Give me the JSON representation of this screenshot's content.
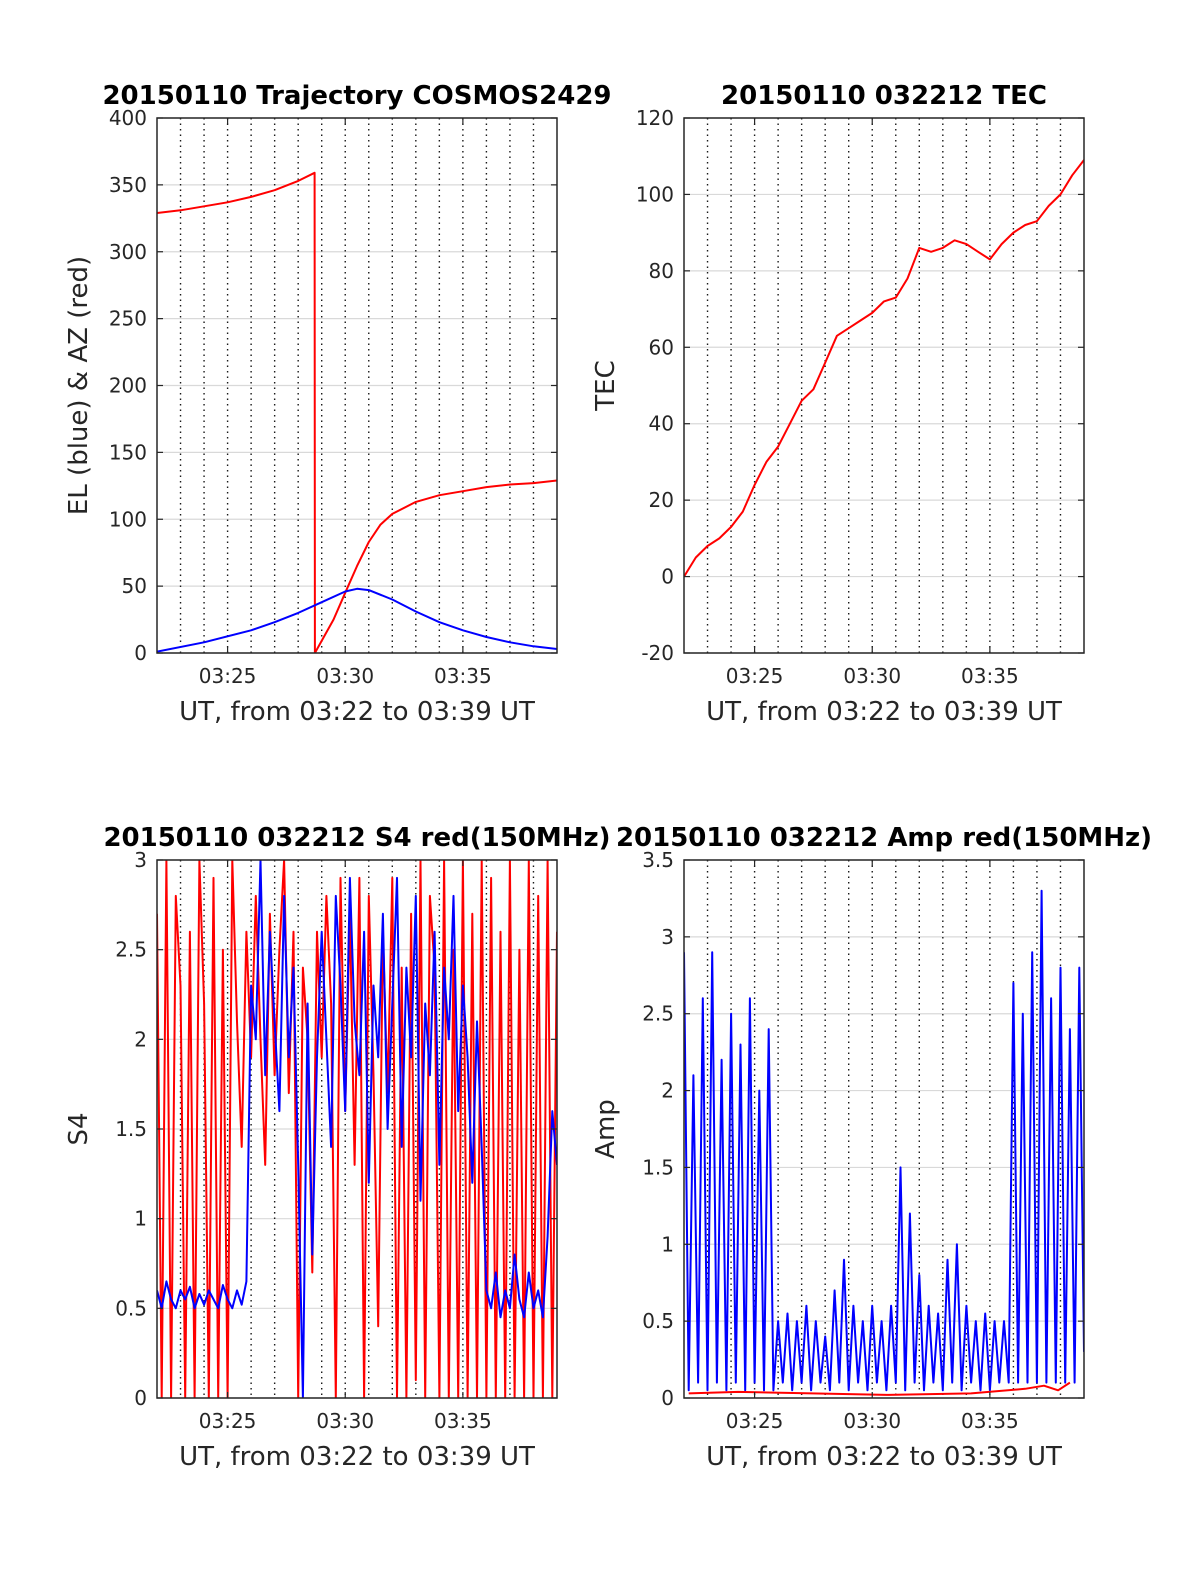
{
  "chart_data": [
    {
      "id": "traj",
      "type": "line",
      "title": "20150110 Trajectory COSMOS2429",
      "xlabel": "UT, from 03:22 to 03:39 UT",
      "ylabel": "EL (blue) & AZ (red)",
      "x_unit": "minutes after 03:22",
      "xlim": [
        0,
        17
      ],
      "ylim": [
        0,
        400
      ],
      "x_ticks": [
        3,
        8,
        13
      ],
      "x_tick_labels": [
        "03:25",
        "03:30",
        "03:35"
      ],
      "y_ticks": [
        0,
        50,
        100,
        150,
        200,
        250,
        300,
        350,
        400
      ],
      "y_tick_labels": [
        "0",
        "50",
        "100",
        "150",
        "200",
        "250",
        "300",
        "350",
        "400"
      ],
      "grid": true,
      "series": [
        {
          "color": "#ff0000",
          "x": [
            0,
            1,
            2,
            3,
            4,
            5,
            6,
            6.7,
            6.7,
            6.71,
            7.5,
            8,
            8.5,
            9,
            9.5,
            10,
            11,
            12,
            13,
            14,
            15,
            16,
            17
          ],
          "y": [
            329,
            331,
            334,
            337,
            341,
            346,
            353,
            359,
            359,
            0,
            25,
            45,
            65,
            83,
            96,
            104,
            113,
            118,
            121,
            124,
            126,
            127,
            129
          ]
        },
        {
          "color": "#0000ff",
          "x": [
            0,
            2,
            4,
            5,
            6,
            7,
            8,
            8.5,
            9,
            10,
            11,
            12,
            13,
            14,
            15,
            16,
            17
          ],
          "y": [
            1,
            8,
            17,
            23,
            30,
            38,
            46,
            48,
            47,
            40,
            31,
            23,
            17,
            12,
            8,
            5,
            3
          ]
        }
      ]
    },
    {
      "id": "tec",
      "type": "line",
      "title": "20150110 032212 TEC",
      "xlabel": "UT, from 03:22 to 03:39 UT",
      "ylabel": "TEC",
      "x_unit": "minutes after 03:22",
      "xlim": [
        0,
        17
      ],
      "ylim": [
        -20,
        120
      ],
      "x_ticks": [
        3,
        8,
        13
      ],
      "x_tick_labels": [
        "03:25",
        "03:30",
        "03:35"
      ],
      "y_ticks": [
        -20,
        0,
        20,
        40,
        60,
        80,
        100,
        120
      ],
      "y_tick_labels": [
        "-20",
        "0",
        "20",
        "40",
        "60",
        "80",
        "100",
        "120"
      ],
      "grid": true,
      "series": [
        {
          "color": "#ff0000",
          "x": [
            0,
            0.5,
            1,
            1.5,
            2,
            2.5,
            3,
            3.5,
            4,
            4.5,
            5,
            5.5,
            6,
            6.5,
            7,
            7.5,
            8,
            8.5,
            9,
            9.5,
            10,
            10.5,
            11,
            11.5,
            12,
            12.5,
            13,
            13.5,
            14,
            14.5,
            15,
            15.5,
            16,
            16.5,
            17
          ],
          "y": [
            0,
            5,
            8,
            10,
            13,
            17,
            24,
            30,
            34,
            40,
            46,
            49,
            56,
            63,
            65,
            67,
            69,
            72,
            73,
            78,
            86,
            85,
            86,
            88,
            87,
            85,
            83,
            87,
            90,
            92,
            93,
            97,
            100,
            105,
            109
          ]
        }
      ]
    },
    {
      "id": "s4",
      "type": "line",
      "title": "20150110 032212 S4 red(150MHz)",
      "xlabel": "UT, from 03:22 to 03:39 UT",
      "ylabel": "S4",
      "x_unit": "minutes after 03:22",
      "xlim": [
        0,
        17
      ],
      "ylim": [
        0,
        3
      ],
      "x_ticks": [
        3,
        8,
        13
      ],
      "x_tick_labels": [
        "03:25",
        "03:30",
        "03:35"
      ],
      "y_ticks": [
        0,
        0.5,
        1,
        1.5,
        2,
        2.5,
        3
      ],
      "y_tick_labels": [
        "0",
        "0.5",
        "1",
        "1.5",
        "2",
        "2.5",
        "3"
      ],
      "grid": true,
      "series": [
        {
          "color": "#ff0000",
          "x": [
            0.0,
            0.2,
            0.4,
            0.6,
            0.8,
            1.0,
            1.2,
            1.4,
            1.6,
            1.8,
            2.0,
            2.2,
            2.4,
            2.6,
            2.8,
            3.0,
            3.2,
            3.4,
            3.6,
            3.8,
            4.0,
            4.2,
            4.4,
            4.6,
            4.8,
            5.0,
            5.2,
            5.4,
            5.6,
            5.8,
            6.0,
            6.2,
            6.4,
            6.6,
            6.8,
            7.0,
            7.2,
            7.4,
            7.6,
            7.8,
            8.0,
            8.2,
            8.4,
            8.6,
            8.8,
            9.0,
            9.2,
            9.4,
            9.6,
            9.8,
            10.0,
            10.2,
            10.4,
            10.6,
            10.8,
            11.0,
            11.2,
            11.4,
            11.6,
            11.8,
            12.0,
            12.2,
            12.4,
            12.6,
            12.8,
            13.0,
            13.2,
            13.4,
            13.6,
            13.8,
            14.0,
            14.2,
            14.4,
            14.6,
            14.8,
            15.0,
            15.2,
            15.4,
            15.6,
            15.8,
            16.0,
            16.2,
            16.4,
            16.6,
            16.8,
            17.0
          ],
          "y": [
            2.7,
            0.0,
            3.0,
            0.0,
            2.8,
            2.3,
            0.0,
            2.6,
            0.0,
            3.0,
            2.2,
            0.0,
            2.9,
            0.0,
            2.5,
            0.0,
            3.0,
            2.1,
            1.4,
            2.6,
            1.9,
            2.8,
            2.0,
            1.3,
            2.7,
            1.8,
            2.5,
            3.0,
            1.7,
            2.6,
            0.0,
            2.4,
            2.0,
            0.7,
            2.6,
            1.9,
            2.8,
            2.2,
            0.0,
            2.9,
            1.6,
            2.7,
            1.3,
            2.9,
            0.0,
            2.8,
            1.8,
            0.4,
            2.6,
            1.7,
            2.9,
            0.0,
            2.4,
            0.0,
            2.7,
            0.1,
            3.0,
            0.0,
            2.8,
            2.4,
            0.0,
            3.0,
            0.0,
            2.5,
            0.0,
            3.0,
            0.0,
            2.7,
            0.0,
            3.0,
            0.0,
            2.9,
            0.0,
            2.6,
            0.0,
            3.0,
            0.0,
            2.5,
            0.0,
            3.0,
            0.0,
            2.8,
            0.0,
            3.0,
            0.0,
            2.6
          ]
        },
        {
          "color": "#0000ff",
          "x": [
            0.0,
            0.2,
            0.4,
            0.6,
            0.8,
            1.0,
            1.2,
            1.4,
            1.6,
            1.8,
            2.0,
            2.2,
            2.4,
            2.6,
            2.8,
            3.0,
            3.2,
            3.4,
            3.6,
            3.8,
            4.0,
            4.2,
            4.4,
            4.6,
            4.8,
            5.0,
            5.2,
            5.4,
            5.6,
            5.8,
            6.0,
            6.2,
            6.4,
            6.6,
            6.8,
            7.0,
            7.2,
            7.4,
            7.6,
            7.8,
            8.0,
            8.2,
            8.4,
            8.6,
            8.8,
            9.0,
            9.2,
            9.4,
            9.6,
            9.8,
            10.0,
            10.2,
            10.4,
            10.6,
            10.8,
            11.0,
            11.2,
            11.4,
            11.6,
            11.8,
            12.0,
            12.2,
            12.4,
            12.6,
            12.8,
            13.0,
            13.2,
            13.4,
            13.6,
            13.8,
            14.0,
            14.2,
            14.4,
            14.6,
            14.8,
            15.0,
            15.2,
            15.4,
            15.6,
            15.8,
            16.0,
            16.2,
            16.4,
            16.6,
            16.8,
            17.0
          ],
          "y": [
            0.6,
            0.5,
            0.65,
            0.55,
            0.5,
            0.6,
            0.55,
            0.62,
            0.5,
            0.58,
            0.52,
            0.6,
            0.55,
            0.5,
            0.63,
            0.55,
            0.5,
            0.6,
            0.52,
            0.65,
            2.3,
            2.0,
            3.0,
            1.8,
            2.6,
            2.1,
            1.6,
            2.8,
            1.9,
            2.4,
            1.3,
            0.0,
            2.2,
            0.8,
            1.9,
            2.6,
            2.0,
            1.4,
            2.8,
            2.3,
            1.6,
            2.9,
            2.1,
            1.8,
            2.6,
            1.2,
            2.3,
            1.9,
            2.7,
            1.5,
            2.2,
            2.9,
            1.4,
            2.4,
            1.9,
            2.8,
            1.1,
            2.2,
            1.8,
            2.6,
            1.3,
            2.4,
            2.0,
            2.8,
            1.6,
            2.3,
            1.9,
            1.2,
            2.1,
            1.4,
            0.6,
            0.5,
            0.7,
            0.45,
            0.6,
            0.5,
            0.8,
            0.55,
            0.45,
            0.7,
            0.5,
            0.6,
            0.45,
            0.9,
            1.6,
            1.3
          ]
        }
      ]
    },
    {
      "id": "amp",
      "type": "line",
      "title": "20150110 032212 Amp red(150MHz)",
      "xlabel": "UT, from 03:22 to 03:39 UT",
      "ylabel": "Amp",
      "x_unit": "minutes after 03:22",
      "xlim": [
        0,
        17
      ],
      "ylim": [
        0,
        3.5
      ],
      "x_ticks": [
        3,
        8,
        13
      ],
      "x_tick_labels": [
        "03:25",
        "03:30",
        "03:35"
      ],
      "y_ticks": [
        0,
        0.5,
        1,
        1.5,
        2,
        2.5,
        3,
        3.5
      ],
      "y_tick_labels": [
        "0",
        "0.5",
        "1",
        "1.5",
        "2",
        "2.5",
        "3",
        "3.5"
      ],
      "grid": true,
      "series": [
        {
          "color": "#0000ff",
          "x": [
            0.0,
            0.2,
            0.4,
            0.6,
            0.8,
            1.0,
            1.2,
            1.4,
            1.6,
            1.8,
            2.0,
            2.2,
            2.4,
            2.6,
            2.8,
            3.0,
            3.2,
            3.4,
            3.6,
            3.8,
            4.0,
            4.2,
            4.4,
            4.6,
            4.8,
            5.0,
            5.2,
            5.4,
            5.6,
            5.8,
            6.0,
            6.2,
            6.4,
            6.6,
            6.8,
            7.0,
            7.2,
            7.4,
            7.6,
            7.8,
            8.0,
            8.2,
            8.4,
            8.6,
            8.8,
            9.0,
            9.2,
            9.4,
            9.6,
            9.8,
            10.0,
            10.2,
            10.4,
            10.6,
            10.8,
            11.0,
            11.2,
            11.4,
            11.6,
            11.8,
            12.0,
            12.2,
            12.4,
            12.6,
            12.8,
            13.0,
            13.2,
            13.4,
            13.6,
            13.8,
            14.0,
            14.2,
            14.4,
            14.6,
            14.8,
            15.0,
            15.2,
            15.4,
            15.6,
            15.8,
            16.0,
            16.2,
            16.4,
            16.6,
            16.8,
            17.0
          ],
          "y": [
            2.9,
            0.05,
            2.1,
            0.1,
            2.6,
            0.05,
            2.9,
            0.1,
            2.2,
            0.05,
            2.5,
            0.1,
            2.3,
            0.05,
            2.6,
            0.1,
            2.0,
            0.05,
            2.4,
            0.05,
            0.5,
            0.1,
            0.55,
            0.05,
            0.5,
            0.1,
            0.6,
            0.05,
            0.5,
            0.1,
            0.4,
            0.05,
            0.7,
            0.1,
            0.9,
            0.05,
            0.6,
            0.1,
            0.5,
            0.05,
            0.6,
            0.1,
            0.5,
            0.05,
            0.6,
            0.1,
            1.5,
            0.05,
            1.2,
            0.1,
            0.8,
            0.05,
            0.6,
            0.1,
            0.55,
            0.05,
            0.9,
            0.1,
            1.0,
            0.05,
            0.6,
            0.1,
            0.5,
            0.05,
            0.55,
            0.05,
            0.5,
            0.1,
            0.5,
            0.1,
            2.7,
            0.1,
            2.5,
            0.1,
            2.9,
            0.1,
            3.3,
            0.1,
            2.6,
            0.1,
            2.8,
            0.1,
            2.4,
            0.1,
            2.8,
            0.3
          ]
        },
        {
          "color": "#ff0000",
          "x": [
            0.2,
            2.3,
            8.6,
            12.2,
            14.5,
            15.3,
            15.9,
            16.4
          ],
          "y": [
            0.03,
            0.04,
            0.02,
            0.03,
            0.06,
            0.08,
            0.05,
            0.1
          ]
        }
      ]
    }
  ]
}
